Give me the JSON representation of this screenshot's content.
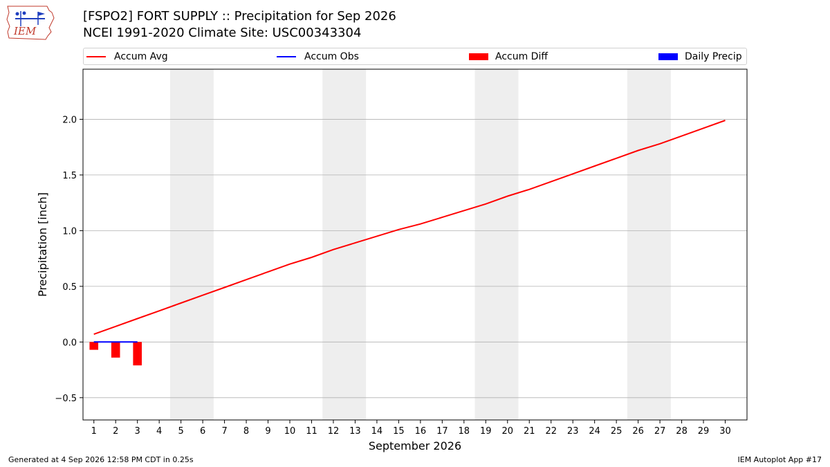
{
  "header": {
    "title_line1": "[FSPO2] FORT SUPPLY :: Precipitation for Sep 2026",
    "title_line2": "NCEI 1991-2020 Climate Site: USC00343304",
    "logo_text": "IEM"
  },
  "legend": {
    "items": [
      {
        "label": "Accum Avg",
        "kind": "line",
        "color": "#ff0000"
      },
      {
        "label": "Accum Obs",
        "kind": "line",
        "color": "#0000ff"
      },
      {
        "label": "Accum Diff",
        "kind": "patch",
        "color": "#ff0000"
      },
      {
        "label": "Daily Precip",
        "kind": "patch",
        "color": "#0000ff"
      }
    ]
  },
  "footer": {
    "left": "Generated at 4 Sep 2026 12:58 PM CDT in 0.25s",
    "right": "IEM Autoplot App #17"
  },
  "chart_data": {
    "type": "line",
    "xlabel": "September 2026",
    "ylabel": "Precipitation [inch]",
    "xlim": [
      0.5,
      31.0
    ],
    "ylim": [
      -0.7,
      2.45
    ],
    "yticks": [
      -0.5,
      0.0,
      0.5,
      1.0,
      1.5,
      2.0
    ],
    "ytick_labels": [
      "−0.5",
      "0.0",
      "0.5",
      "1.0",
      "1.5",
      "2.0"
    ],
    "xticks": [
      1,
      2,
      3,
      4,
      5,
      6,
      7,
      8,
      9,
      10,
      11,
      12,
      13,
      14,
      15,
      16,
      17,
      18,
      19,
      20,
      21,
      22,
      23,
      24,
      25,
      26,
      27,
      28,
      29,
      30
    ],
    "grid": "horizontal",
    "weekend_shading": [
      [
        4.5,
        6.5
      ],
      [
        11.5,
        13.5
      ],
      [
        18.5,
        20.5
      ],
      [
        25.5,
        27.5
      ]
    ],
    "series": [
      {
        "name": "Accum Avg",
        "kind": "line",
        "color": "#ff0000",
        "x": [
          1,
          2,
          3,
          4,
          5,
          6,
          7,
          8,
          9,
          10,
          11,
          12,
          13,
          14,
          15,
          16,
          17,
          18,
          19,
          20,
          21,
          22,
          23,
          24,
          25,
          26,
          27,
          28,
          29,
          30
        ],
        "values": [
          0.07,
          0.14,
          0.21,
          0.28,
          0.35,
          0.42,
          0.49,
          0.56,
          0.63,
          0.7,
          0.76,
          0.83,
          0.89,
          0.95,
          1.01,
          1.06,
          1.12,
          1.18,
          1.24,
          1.31,
          1.37,
          1.44,
          1.51,
          1.58,
          1.65,
          1.72,
          1.78,
          1.85,
          1.92,
          1.99
        ]
      },
      {
        "name": "Accum Obs",
        "kind": "line",
        "color": "#0000ff",
        "x": [
          1,
          2,
          3
        ],
        "values": [
          0.0,
          0.0,
          0.0
        ]
      },
      {
        "name": "Accum Diff",
        "kind": "bar",
        "color": "#ff0000",
        "x": [
          1,
          2,
          3
        ],
        "values": [
          -0.07,
          -0.14,
          -0.21
        ]
      },
      {
        "name": "Daily Precip",
        "kind": "bar",
        "color": "#0000ff",
        "x": [
          1,
          2,
          3
        ],
        "values": [
          0.0,
          0.0,
          0.0
        ]
      }
    ]
  }
}
